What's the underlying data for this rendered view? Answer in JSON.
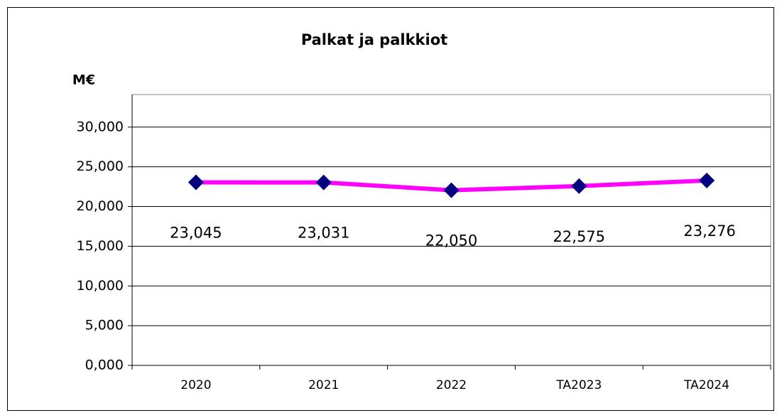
{
  "chart_data": {
    "type": "line",
    "title": "Palkat ja palkkiot",
    "y_label": "M€",
    "categories": [
      "2020",
      "2021",
      "2022",
      "TA2023",
      "TA2024"
    ],
    "series": [
      {
        "name": "Palkat ja palkkiot",
        "line_color": "#ff00ff",
        "marker_color": "#000080",
        "values": [
          23.045,
          23.031,
          22.05,
          22.575,
          23.276
        ],
        "value_labels": [
          "23,045",
          "23,031",
          "22,050",
          "22,575",
          "23,276"
        ]
      }
    ],
    "ylim": [
      0,
      34.1
    ],
    "yticks": [
      {
        "value": 0,
        "label": "0,000"
      },
      {
        "value": 5,
        "label": "5,000"
      },
      {
        "value": 10,
        "label": "10,000"
      },
      {
        "value": 15,
        "label": "15,000"
      },
      {
        "value": 20,
        "label": "20,000"
      },
      {
        "value": 25,
        "label": "25,000"
      },
      {
        "value": 30,
        "label": "30,000"
      }
    ],
    "grid": true
  }
}
